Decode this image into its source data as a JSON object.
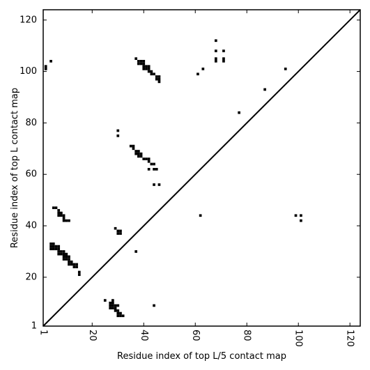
{
  "chart_data": {
    "type": "scatter",
    "xlabel": "Residue index of top L/5 contact map",
    "ylabel": "Residue index of top L contact map",
    "xlim": [
      1,
      124
    ],
    "ylim": [
      1,
      124
    ],
    "x_ticks": [
      {
        "value": 1,
        "label": "1"
      },
      {
        "value": 20,
        "label": "20"
      },
      {
        "value": 40,
        "label": "40"
      },
      {
        "value": 60,
        "label": "60"
      },
      {
        "value": 80,
        "label": "80"
      },
      {
        "value": 100,
        "label": "100"
      },
      {
        "value": 120,
        "label": "120"
      }
    ],
    "y_ticks": [
      {
        "value": 1,
        "label": "1"
      },
      {
        "value": 20,
        "label": "20"
      },
      {
        "value": 40,
        "label": "40"
      },
      {
        "value": 60,
        "label": "60"
      },
      {
        "value": 80,
        "label": "80"
      },
      {
        "value": 100,
        "label": "100"
      },
      {
        "value": 120,
        "label": "120"
      }
    ],
    "diagonal": true,
    "grid": false,
    "marker": "square",
    "marker_color": "#000000",
    "series": [
      {
        "points": [
          [
            2,
            101
          ],
          [
            2,
            102
          ],
          [
            4,
            104
          ],
          [
            37,
            105
          ],
          [
            38,
            103
          ],
          [
            38,
            104
          ],
          [
            39,
            103
          ],
          [
            39,
            104
          ],
          [
            40,
            101
          ],
          [
            40,
            102
          ],
          [
            40,
            103
          ],
          [
            40,
            104
          ],
          [
            41,
            101
          ],
          [
            41,
            102
          ],
          [
            42,
            100
          ],
          [
            42,
            101
          ],
          [
            42,
            102
          ],
          [
            43,
            99
          ],
          [
            43,
            100
          ],
          [
            44,
            99
          ],
          [
            45,
            97
          ],
          [
            45,
            98
          ],
          [
            46,
            96
          ],
          [
            46,
            97
          ],
          [
            46,
            98
          ],
          [
            61,
            99
          ],
          [
            63,
            101
          ],
          [
            68,
            112
          ],
          [
            68,
            108
          ],
          [
            68,
            105
          ],
          [
            68,
            104
          ],
          [
            71,
            108
          ],
          [
            71,
            105
          ],
          [
            71,
            104
          ],
          [
            87,
            93
          ],
          [
            77,
            84
          ],
          [
            95,
            101
          ],
          [
            30,
            77
          ],
          [
            30,
            75
          ],
          [
            35,
            71
          ],
          [
            36,
            71
          ],
          [
            36,
            70
          ],
          [
            37,
            69
          ],
          [
            37,
            68
          ],
          [
            38,
            69
          ],
          [
            38,
            68
          ],
          [
            38,
            67
          ],
          [
            39,
            68
          ],
          [
            39,
            67
          ],
          [
            40,
            66
          ],
          [
            41,
            66
          ],
          [
            42,
            66
          ],
          [
            42,
            65
          ],
          [
            43,
            64
          ],
          [
            44,
            64
          ],
          [
            42,
            62
          ],
          [
            44,
            62
          ],
          [
            45,
            62
          ],
          [
            44,
            56
          ],
          [
            46,
            56
          ],
          [
            62,
            44
          ],
          [
            99,
            44
          ],
          [
            101,
            44
          ],
          [
            101,
            42
          ],
          [
            5,
            47
          ],
          [
            6,
            47
          ],
          [
            7,
            46
          ],
          [
            7,
            45
          ],
          [
            7,
            44
          ],
          [
            8,
            45
          ],
          [
            8,
            44
          ],
          [
            9,
            44
          ],
          [
            9,
            43
          ],
          [
            9,
            42
          ],
          [
            10,
            42
          ],
          [
            11,
            42
          ],
          [
            29,
            39
          ],
          [
            30,
            38
          ],
          [
            30,
            37
          ],
          [
            31,
            38
          ],
          [
            31,
            37
          ],
          [
            37,
            30
          ],
          [
            4,
            33
          ],
          [
            4,
            32
          ],
          [
            4,
            31
          ],
          [
            5,
            33
          ],
          [
            5,
            32
          ],
          [
            5,
            31
          ],
          [
            6,
            32
          ],
          [
            6,
            31
          ],
          [
            7,
            32
          ],
          [
            7,
            31
          ],
          [
            7,
            30
          ],
          [
            7,
            29
          ],
          [
            8,
            30
          ],
          [
            8,
            29
          ],
          [
            9,
            30
          ],
          [
            9,
            29
          ],
          [
            9,
            28
          ],
          [
            9,
            27
          ],
          [
            10,
            29
          ],
          [
            10,
            28
          ],
          [
            10,
            27
          ],
          [
            11,
            28
          ],
          [
            11,
            27
          ],
          [
            11,
            26
          ],
          [
            11,
            25
          ],
          [
            12,
            26
          ],
          [
            12,
            25
          ],
          [
            13,
            25
          ],
          [
            13,
            24
          ],
          [
            14,
            25
          ],
          [
            14,
            24
          ],
          [
            15,
            22
          ],
          [
            15,
            21
          ],
          [
            25,
            11
          ],
          [
            27,
            10
          ],
          [
            27,
            9
          ],
          [
            27,
            8
          ],
          [
            28,
            11
          ],
          [
            28,
            10
          ],
          [
            28,
            9
          ],
          [
            28,
            8
          ],
          [
            29,
            9
          ],
          [
            29,
            8
          ],
          [
            29,
            7
          ],
          [
            30,
            9
          ],
          [
            30,
            7
          ],
          [
            30,
            6
          ],
          [
            30,
            5
          ],
          [
            31,
            6
          ],
          [
            31,
            5
          ],
          [
            32,
            5
          ],
          [
            44,
            9
          ]
        ]
      }
    ]
  }
}
